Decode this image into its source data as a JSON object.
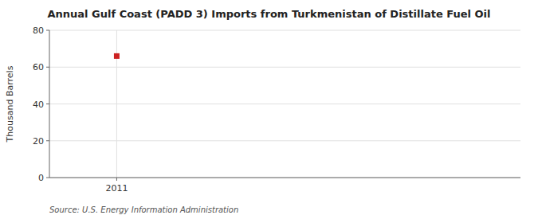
{
  "chart_data": {
    "type": "scatter",
    "title": "Annual Gulf Coast (PADD 3) Imports from Turkmenistan of Distillate Fuel Oil",
    "ylabel": "Thousand Barrels",
    "source": "Source: U.S. Energy Information Administration",
    "x": [
      2011
    ],
    "values": [
      66
    ],
    "color": "#cc2222",
    "marker": "square",
    "xlim": [
      2010.5,
      2014.0
    ],
    "xticks": [
      2011
    ],
    "ylim": [
      0,
      80
    ],
    "yticks": [
      0,
      20,
      40,
      60,
      80
    ],
    "grid": true
  }
}
